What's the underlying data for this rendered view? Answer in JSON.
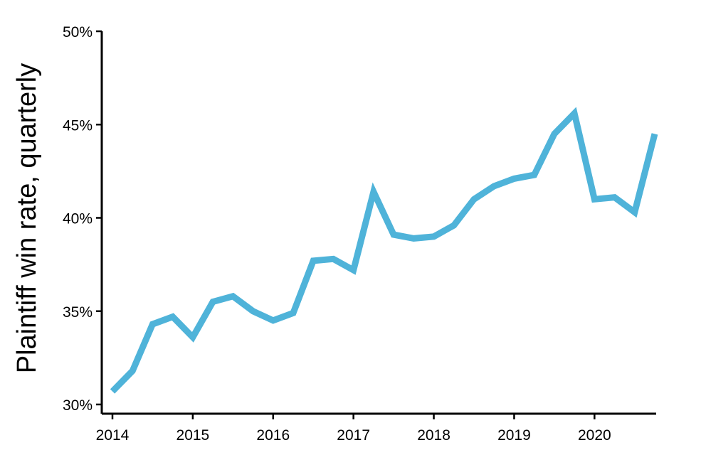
{
  "chart_data": {
    "type": "line",
    "title": "",
    "xlabel": "",
    "ylabel": "Plaintiff win rate, quarterly",
    "xlim": [
      2014,
      2020.75
    ],
    "ylim": [
      30,
      50
    ],
    "grid": false,
    "legend": "none",
    "colors": {
      "line": "#4fb3d9",
      "axis": "#000000"
    },
    "x_ticks": [
      2014,
      2015,
      2016,
      2017,
      2018,
      2019,
      2020
    ],
    "x_tick_labels": [
      "2014",
      "2015",
      "2016",
      "2017",
      "2018",
      "2019",
      "2020"
    ],
    "y_ticks": [
      30,
      35,
      40,
      45,
      50
    ],
    "y_tick_labels": [
      "30%",
      "35%",
      "40%",
      "45%",
      "50%"
    ],
    "series": [
      {
        "x": [
          2014.0,
          2014.25,
          2014.5,
          2014.75,
          2015.0,
          2015.25,
          2015.5,
          2015.75,
          2016.0,
          2016.25,
          2016.5,
          2016.75,
          2017.0,
          2017.25,
          2017.5,
          2017.75,
          2018.0,
          2018.25,
          2018.5,
          2018.75,
          2019.0,
          2019.25,
          2019.5,
          2019.75,
          2020.0,
          2020.25,
          2020.5,
          2020.75
        ],
        "values": [
          30.7,
          31.8,
          34.3,
          34.7,
          33.6,
          35.5,
          35.8,
          35.0,
          34.5,
          34.9,
          37.7,
          37.8,
          37.2,
          41.4,
          39.1,
          38.9,
          39.0,
          39.6,
          41.0,
          41.7,
          42.1,
          42.3,
          44.5,
          45.6,
          41.0,
          41.1,
          40.3,
          44.5
        ]
      }
    ]
  }
}
